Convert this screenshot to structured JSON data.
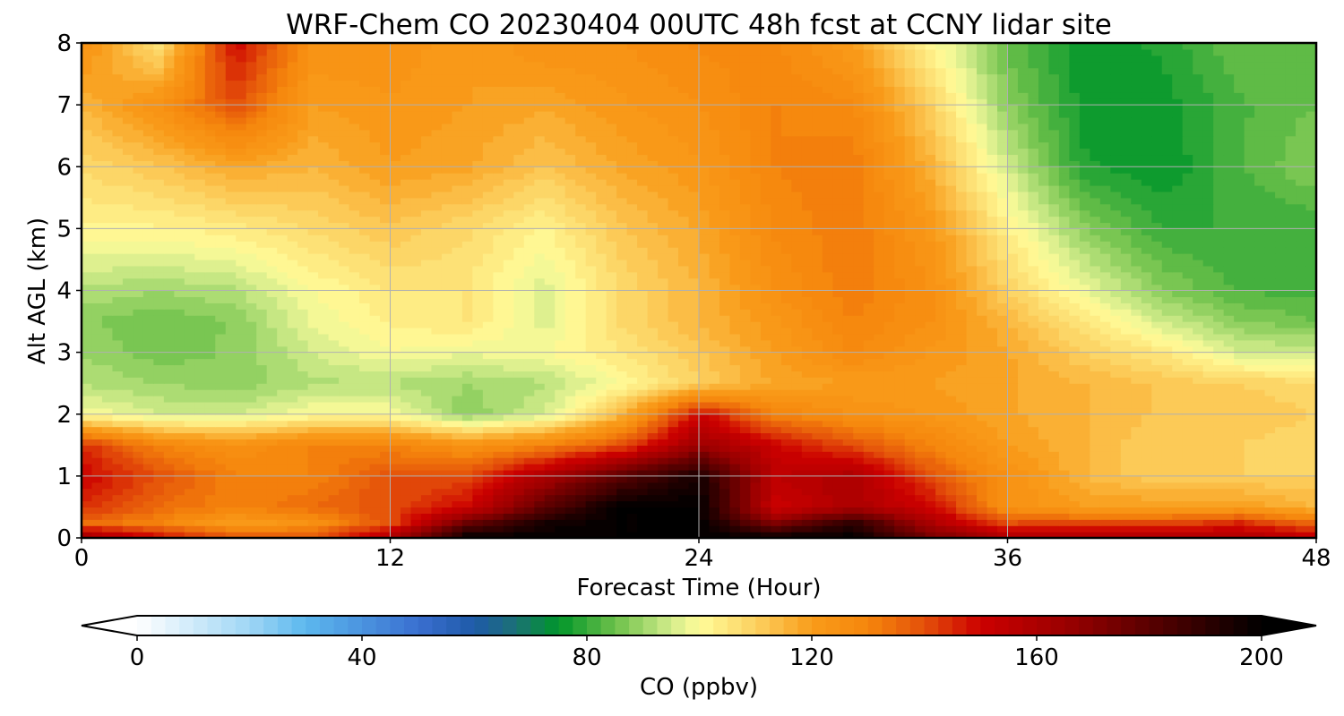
{
  "chart_data": {
    "type": "heatmap",
    "title": "WRF-Chem CO  20230404 00UTC 48h fcst at CCNY lidar site",
    "xlabel": "Forecast Time (Hour)",
    "ylabel": "Alt AGL (km)",
    "xlim": [
      0,
      48
    ],
    "ylim": [
      0,
      8
    ],
    "x_ticks": [
      "0",
      "12",
      "24",
      "36",
      "48"
    ],
    "y_ticks": [
      "0",
      "1",
      "2",
      "3",
      "4",
      "5",
      "6",
      "7",
      "8"
    ],
    "grid": true,
    "colorbar": {
      "label": "CO  (ppbv)",
      "ticks": [
        "0",
        "40",
        "80",
        "120",
        "160",
        "200"
      ],
      "range": [
        0,
        200
      ],
      "step": 2.5,
      "extend": "both",
      "orientation": "horizontal",
      "stops": [
        {
          "v": 0,
          "c": "#ffffff"
        },
        {
          "v": 20,
          "c": "#9fd6f5"
        },
        {
          "v": 30,
          "c": "#5cb8ee"
        },
        {
          "v": 50,
          "c": "#3a6fd0"
        },
        {
          "v": 60,
          "c": "#1f5aa8"
        },
        {
          "v": 67,
          "c": "#1c6f78"
        },
        {
          "v": 75,
          "c": "#00962a"
        },
        {
          "v": 85,
          "c": "#6cc04a"
        },
        {
          "v": 95,
          "c": "#d3ec8b"
        },
        {
          "v": 100,
          "c": "#fffc9a"
        },
        {
          "v": 110,
          "c": "#fcd160"
        },
        {
          "v": 120,
          "c": "#f99c1a"
        },
        {
          "v": 130,
          "c": "#f5860c"
        },
        {
          "v": 140,
          "c": "#e4500a"
        },
        {
          "v": 150,
          "c": "#cc0000"
        },
        {
          "v": 165,
          "c": "#9b0000"
        },
        {
          "v": 180,
          "c": "#5a0000"
        },
        {
          "v": 200,
          "c": "#000000"
        }
      ]
    },
    "field": {
      "x": [
        0,
        3,
        6,
        9,
        12,
        15,
        18,
        21,
        24,
        27,
        30,
        33,
        36,
        39,
        42,
        45,
        48
      ],
      "y": [
        0,
        0.25,
        0.5,
        1.0,
        1.5,
        2.0,
        2.5,
        3.0,
        3.5,
        4.0,
        5.0,
        6.0,
        7.0,
        8.0
      ],
      "values": [
        [
          165,
          150,
          140,
          140,
          160,
          200,
          200,
          200,
          200,
          200,
          200,
          175,
          160,
          160,
          160,
          160,
          155
        ],
        [
          135,
          130,
          120,
          125,
          140,
          175,
          195,
          200,
          200,
          170,
          190,
          160,
          140,
          140,
          140,
          145,
          135
        ],
        [
          145,
          135,
          130,
          135,
          140,
          150,
          180,
          200,
          200,
          150,
          160,
          150,
          125,
          120,
          120,
          120,
          115
        ],
        [
          150,
          140,
          130,
          130,
          140,
          140,
          160,
          180,
          195,
          155,
          160,
          140,
          125,
          115,
          110,
          110,
          110
        ],
        [
          145,
          130,
          125,
          130,
          130,
          125,
          130,
          140,
          165,
          150,
          140,
          130,
          120,
          115,
          110,
          110,
          108
        ],
        [
          100,
          95,
          95,
          100,
          100,
          88,
          95,
          115,
          150,
          130,
          125,
          122,
          118,
          115,
          112,
          112,
          110
        ],
        [
          92,
          90,
          88,
          92,
          92,
          90,
          92,
          100,
          110,
          118,
          120,
          120,
          118,
          115,
          112,
          110,
          108
        ],
        [
          90,
          86,
          88,
          95,
          100,
          98,
          100,
          105,
          112,
          120,
          128,
          122,
          118,
          110,
          105,
          95,
          95
        ],
        [
          88,
          85,
          88,
          98,
          103,
          105,
          96,
          108,
          115,
          122,
          130,
          125,
          115,
          105,
          95,
          88,
          85
        ],
        [
          92,
          90,
          92,
          100,
          105,
          105,
          96,
          108,
          115,
          125,
          132,
          125,
          110,
          98,
          88,
          82,
          82
        ],
        [
          102,
          102,
          104,
          108,
          112,
          108,
          102,
          112,
          118,
          128,
          132,
          122,
          103,
          88,
          80,
          80,
          80
        ],
        [
          108,
          112,
          118,
          115,
          120,
          118,
          112,
          118,
          122,
          130,
          132,
          116,
          95,
          78,
          75,
          82,
          88
        ],
        [
          115,
          125,
          140,
          120,
          122,
          120,
          118,
          122,
          125,
          130,
          128,
          110,
          88,
          76,
          76,
          82,
          85
        ],
        [
          125,
          105,
          150,
          125,
          125,
          120,
          125,
          125,
          128,
          128,
          120,
          102,
          84,
          76,
          78,
          85,
          85
        ]
      ]
    }
  }
}
